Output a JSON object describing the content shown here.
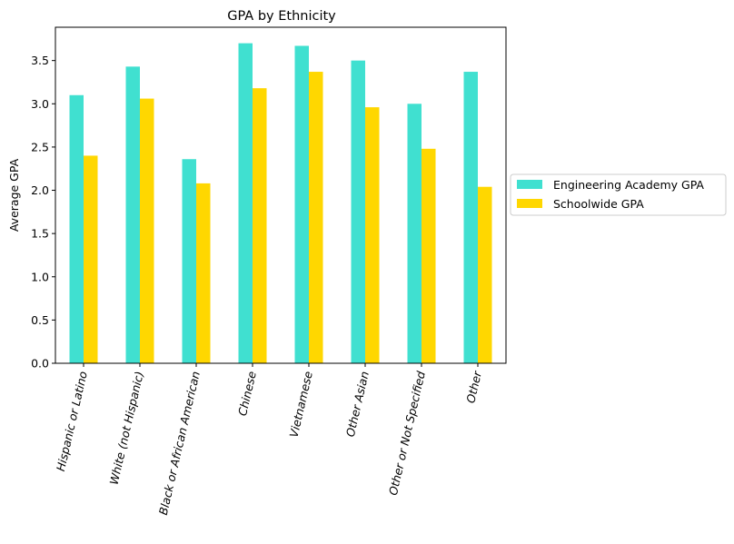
{
  "chart_data": {
    "type": "bar",
    "title": "GPA by Ethnicity",
    "xlabel": "",
    "ylabel": "Average GPA",
    "ylim": [
      0,
      3.885
    ],
    "yticks": [
      "0.0",
      "0.5",
      "1.0",
      "1.5",
      "2.0",
      "2.5",
      "3.0",
      "3.5"
    ],
    "categories": [
      "Hispanic or Latino",
      "White (not Hispanic)",
      "Black or African American",
      "Chinese",
      "Vietnamese",
      "Other Asian",
      "Other or Not Specified",
      "Other"
    ],
    "series": [
      {
        "name": "Engineering Academy GPA",
        "color": "#40E0D0",
        "values": [
          3.1,
          3.43,
          2.36,
          3.7,
          3.67,
          3.5,
          3.0,
          3.37
        ]
      },
      {
        "name": "Schoolwide GPA",
        "color": "#FFD700",
        "values": [
          2.4,
          3.06,
          2.08,
          3.18,
          3.37,
          2.96,
          2.48,
          2.04
        ]
      }
    ],
    "grid": false,
    "legend_position": "center-right outside"
  }
}
